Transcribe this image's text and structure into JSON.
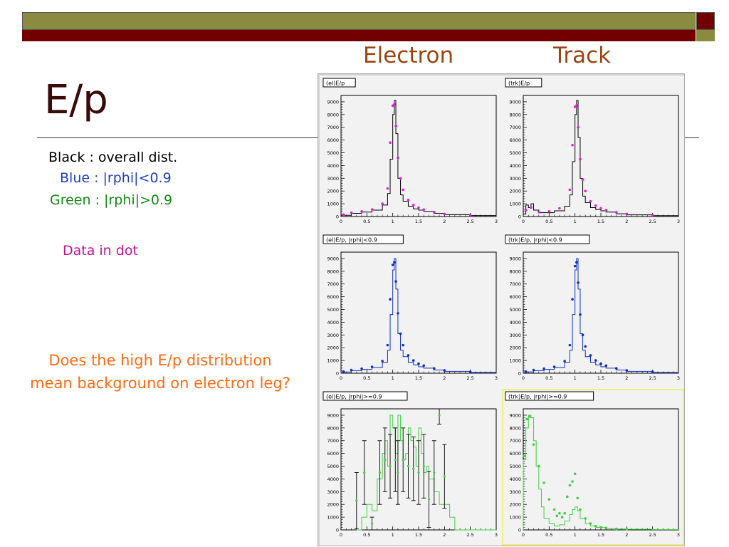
{
  "slide": {
    "title": "E/p",
    "column_headers": {
      "electron": "Electron",
      "track": "Track"
    },
    "legend": {
      "black": "Black : overall dist.",
      "blue": "Blue : |rphi|<0.9",
      "green": "Green : |rphi|>0.9"
    },
    "data_note": "Data in dot",
    "question_line1": "Does the high E/p distribution",
    "question_line2": "mean background on electron leg?"
  },
  "colors": {
    "black": "#000000",
    "magenta": "#e020e0",
    "blue": "#1030c0",
    "green": "#40d040",
    "header": "#9a4512"
  },
  "chart_data": [
    {
      "type": "line",
      "title": "(el)E/p",
      "series_color": "magenta",
      "xlim": [
        0,
        3
      ],
      "ylim": [
        0,
        9500
      ],
      "xticks": [
        "0",
        "0.5",
        "1",
        "1.5",
        "2",
        "2.5",
        "3"
      ],
      "yticks": [
        "0",
        "1000",
        "2000",
        "3000",
        "4000",
        "5000",
        "6000",
        "7000",
        "8000",
        "9000"
      ],
      "series": [
        {
          "style": "step",
          "color": "black",
          "x": [
            0,
            0.2,
            0.4,
            0.6,
            0.8,
            0.9,
            0.95,
            1.0,
            1.03,
            1.06,
            1.1,
            1.15,
            1.2,
            1.3,
            1.4,
            1.5,
            1.6,
            1.8,
            2.0,
            2.5,
            3.0
          ],
          "y": [
            100,
            250,
            350,
            500,
            900,
            1800,
            4500,
            8000,
            9100,
            6500,
            3000,
            1700,
            1200,
            800,
            600,
            500,
            400,
            250,
            150,
            80,
            50
          ]
        },
        {
          "style": "dots",
          "color": "magenta",
          "x": [
            0.05,
            0.2,
            0.4,
            0.6,
            0.8,
            0.9,
            0.95,
            1.0,
            1.03,
            1.06,
            1.1,
            1.15,
            1.2,
            1.3,
            1.4,
            1.5,
            1.6,
            1.8,
            2.0,
            2.5
          ],
          "y": [
            150,
            300,
            400,
            550,
            1000,
            2200,
            5800,
            8700,
            8800,
            7100,
            4600,
            3000,
            2100,
            1300,
            900,
            700,
            550,
            350,
            200,
            100
          ]
        }
      ]
    },
    {
      "type": "line",
      "title": "(trk)E/p",
      "series_color": "magenta",
      "xlim": [
        0,
        3
      ],
      "ylim": [
        0,
        9500
      ],
      "xticks": [
        "0",
        "0.5",
        "1",
        "1.5",
        "2",
        "2.5",
        "3"
      ],
      "yticks": [
        "0",
        "1000",
        "2000",
        "3000",
        "4000",
        "5000",
        "6000",
        "7000",
        "8000",
        "9000"
      ],
      "series": [
        {
          "style": "step",
          "color": "black",
          "x": [
            0,
            0.05,
            0.1,
            0.15,
            0.2,
            0.3,
            0.4,
            0.6,
            0.8,
            0.9,
            0.95,
            1.0,
            1.03,
            1.06,
            1.1,
            1.15,
            1.2,
            1.3,
            1.4,
            1.5,
            1.6,
            1.8,
            2.0,
            2.5,
            3.0
          ],
          "y": [
            200,
            900,
            700,
            1000,
            500,
            300,
            300,
            450,
            800,
            1700,
            4300,
            8000,
            9100,
            6200,
            3000,
            1600,
            1100,
            700,
            550,
            450,
            350,
            220,
            130,
            70,
            40
          ]
        },
        {
          "style": "dots",
          "color": "magenta",
          "x": [
            0.05,
            0.15,
            0.3,
            0.5,
            0.7,
            0.9,
            0.95,
            1.0,
            1.03,
            1.06,
            1.1,
            1.15,
            1.2,
            1.3,
            1.4,
            1.5,
            1.6,
            1.8,
            2.0,
            2.5
          ],
          "y": [
            500,
            700,
            350,
            400,
            650,
            2100,
            5600,
            8600,
            8700,
            7000,
            4500,
            2900,
            2000,
            1200,
            850,
            650,
            500,
            330,
            200,
            100
          ]
        }
      ]
    },
    {
      "type": "line",
      "title": "(el)E/p, |rphi|<0.9",
      "series_color": "blue",
      "xlim": [
        0,
        3
      ],
      "ylim": [
        0,
        9500
      ],
      "xticks": [
        "0",
        "0.5",
        "1",
        "1.5",
        "2",
        "2.5",
        "3"
      ],
      "yticks": [
        "0",
        "1000",
        "2000",
        "3000",
        "4000",
        "5000",
        "6000",
        "7000",
        "8000",
        "9000"
      ],
      "series": [
        {
          "style": "step",
          "color": "blue",
          "x": [
            0,
            0.2,
            0.4,
            0.6,
            0.8,
            0.9,
            0.95,
            1.0,
            1.03,
            1.06,
            1.1,
            1.15,
            1.2,
            1.3,
            1.4,
            1.5,
            1.6,
            1.8,
            2.0,
            2.5,
            3.0
          ],
          "y": [
            100,
            200,
            300,
            450,
            850,
            1800,
            4600,
            8100,
            9000,
            6600,
            3100,
            1800,
            1300,
            850,
            650,
            500,
            400,
            250,
            150,
            80,
            50
          ]
        },
        {
          "style": "dots",
          "color": "blue",
          "x": [
            0.05,
            0.2,
            0.4,
            0.6,
            0.8,
            0.9,
            0.95,
            1.0,
            1.03,
            1.06,
            1.1,
            1.15,
            1.2,
            1.3,
            1.4,
            1.5,
            1.6,
            1.8,
            2.0,
            2.5
          ],
          "y": [
            120,
            250,
            350,
            500,
            950,
            2200,
            5800,
            8500,
            8700,
            7200,
            4700,
            3100,
            2200,
            1400,
            1000,
            750,
            600,
            380,
            220,
            110
          ]
        }
      ]
    },
    {
      "type": "line",
      "title": "(trk)E/p, |rphi|<0.9",
      "series_color": "blue",
      "xlim": [
        0,
        3
      ],
      "ylim": [
        0,
        9500
      ],
      "xticks": [
        "0",
        "0.5",
        "1",
        "1.5",
        "2",
        "2.5",
        "3"
      ],
      "yticks": [
        "0",
        "1000",
        "2000",
        "3000",
        "4000",
        "5000",
        "6000",
        "7000",
        "8000",
        "9000"
      ],
      "series": [
        {
          "style": "step",
          "color": "blue",
          "x": [
            0,
            0.2,
            0.4,
            0.6,
            0.8,
            0.9,
            0.95,
            1.0,
            1.03,
            1.06,
            1.1,
            1.15,
            1.2,
            1.3,
            1.4,
            1.5,
            1.6,
            1.8,
            2.0,
            2.5,
            3.0
          ],
          "y": [
            100,
            200,
            300,
            450,
            850,
            1800,
            4600,
            8100,
            9000,
            6600,
            3100,
            1800,
            1300,
            850,
            650,
            500,
            400,
            250,
            150,
            80,
            50
          ]
        },
        {
          "style": "dots",
          "color": "blue",
          "x": [
            0.05,
            0.2,
            0.4,
            0.6,
            0.8,
            0.9,
            0.95,
            1.0,
            1.03,
            1.06,
            1.1,
            1.15,
            1.2,
            1.3,
            1.4,
            1.5,
            1.6,
            1.8,
            2.0,
            2.5
          ],
          "y": [
            120,
            250,
            350,
            500,
            950,
            2200,
            5800,
            8400,
            8700,
            7100,
            4600,
            3000,
            2100,
            1400,
            1000,
            750,
            600,
            380,
            220,
            110
          ]
        }
      ]
    },
    {
      "type": "line",
      "title": "(el)E/p, |rphi|>=0.9",
      "series_color": "green",
      "xlim": [
        0,
        3
      ],
      "ylim": [
        0,
        9500
      ],
      "xticks": [
        "0",
        "0.5",
        "1",
        "1.5",
        "2",
        "2.5",
        "3"
      ],
      "yticks": [
        "0",
        "1000",
        "2000",
        "3000",
        "4000",
        "5000",
        "6000",
        "7000",
        "8000",
        "9000"
      ],
      "series": [
        {
          "style": "step",
          "color": "green",
          "x": [
            0.3,
            0.4,
            0.5,
            0.6,
            0.7,
            0.8,
            0.85,
            0.9,
            0.95,
            1.0,
            1.05,
            1.1,
            1.15,
            1.2,
            1.25,
            1.3,
            1.35,
            1.4,
            1.45,
            1.5,
            1.55,
            1.6,
            1.65,
            1.7,
            1.8,
            1.9,
            2.0,
            2.1,
            2.2,
            2.3
          ],
          "y": [
            0,
            1000,
            2000,
            1500,
            4000,
            6000,
            7000,
            5000,
            9000,
            8000,
            6000,
            9000,
            7000,
            5500,
            6000,
            8000,
            7000,
            6500,
            5000,
            8000,
            6000,
            4500,
            5000,
            4000,
            3000,
            2000,
            2000,
            1000,
            0,
            0
          ]
        },
        {
          "style": "errorbars",
          "color": "black",
          "x": [
            0.3,
            0.45,
            0.6,
            0.75,
            0.85,
            0.95,
            1.05,
            1.1,
            1.2,
            1.3,
            1.4,
            1.5,
            1.6,
            1.7,
            1.8,
            1.9,
            2.0
          ],
          "y": [
            2300,
            4500,
            500,
            4500,
            5500,
            5000,
            5500,
            4500,
            5500,
            5000,
            4800,
            4500,
            5000,
            2400,
            4500,
            9000,
            4200
          ],
          "err": [
            2200,
            2500,
            500,
            2500,
            2500,
            2500,
            2500,
            2500,
            2500,
            2500,
            2500,
            2500,
            2500,
            2200,
            2500,
            700,
            2500
          ]
        }
      ]
    },
    {
      "type": "line",
      "title": "(trk)E/p, |rphi|>=0.9",
      "series_color": "green",
      "xlim": [
        0,
        3
      ],
      "ylim": [
        0,
        9500
      ],
      "xticks": [
        "0",
        "0.5",
        "1",
        "1.5",
        "2",
        "2.5",
        "3"
      ],
      "yticks": [
        "0",
        "1000",
        "2000",
        "3000",
        "4000",
        "5000",
        "6000",
        "7000",
        "8000",
        "9000"
      ],
      "series": [
        {
          "style": "step",
          "color": "green",
          "x": [
            0,
            0.05,
            0.1,
            0.15,
            0.2,
            0.25,
            0.3,
            0.35,
            0.4,
            0.5,
            0.6,
            0.7,
            0.8,
            0.9,
            0.95,
            1.0,
            1.05,
            1.1,
            1.2,
            1.3,
            1.4,
            1.6,
            1.8,
            2.0,
            2.5,
            3.0
          ],
          "y": [
            5500,
            8000,
            9000,
            8800,
            7000,
            5000,
            3200,
            1800,
            900,
            500,
            300,
            400,
            700,
            1200,
            1600,
            1800,
            1500,
            900,
            500,
            300,
            200,
            100,
            80,
            50,
            30,
            20
          ]
        },
        {
          "style": "dots",
          "color": "green",
          "x": [
            0.02,
            0.07,
            0.12,
            0.2,
            0.3,
            0.4,
            0.5,
            0.6,
            0.65,
            0.7,
            0.75,
            0.8,
            0.85,
            0.9,
            0.95,
            1.0,
            1.05,
            1.1,
            1.2,
            1.3,
            1.4,
            1.5,
            1.6,
            1.8,
            2.0
          ],
          "y": [
            5800,
            8700,
            8900,
            6700,
            5000,
            3700,
            2400,
            1600,
            1100,
            1300,
            1000,
            1300,
            2600,
            3500,
            3800,
            4400,
            2500,
            1600,
            900,
            500,
            300,
            200,
            150,
            80,
            60
          ]
        }
      ]
    }
  ]
}
